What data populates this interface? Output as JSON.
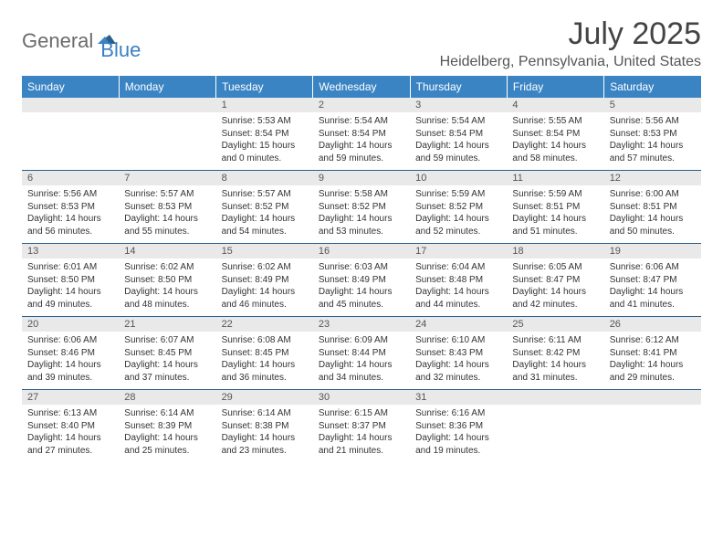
{
  "brand": {
    "part1": "General",
    "part2": "Blue"
  },
  "title": "July 2025",
  "location": "Heidelberg, Pennsylvania, United States",
  "colors": {
    "header_bg": "#3b84c4",
    "header_text": "#ffffff",
    "daynum_bg": "#e9e9e9",
    "rule": "#2b5f8c",
    "logo_gray": "#6b6b6b",
    "logo_blue": "#3b7fc4"
  },
  "days": [
    "Sunday",
    "Monday",
    "Tuesday",
    "Wednesday",
    "Thursday",
    "Friday",
    "Saturday"
  ],
  "weeks": [
    [
      null,
      null,
      {
        "n": "1",
        "sr": "Sunrise: 5:53 AM",
        "ss": "Sunset: 8:54 PM",
        "d1": "Daylight: 15 hours",
        "d2": "and 0 minutes."
      },
      {
        "n": "2",
        "sr": "Sunrise: 5:54 AM",
        "ss": "Sunset: 8:54 PM",
        "d1": "Daylight: 14 hours",
        "d2": "and 59 minutes."
      },
      {
        "n": "3",
        "sr": "Sunrise: 5:54 AM",
        "ss": "Sunset: 8:54 PM",
        "d1": "Daylight: 14 hours",
        "d2": "and 59 minutes."
      },
      {
        "n": "4",
        "sr": "Sunrise: 5:55 AM",
        "ss": "Sunset: 8:54 PM",
        "d1": "Daylight: 14 hours",
        "d2": "and 58 minutes."
      },
      {
        "n": "5",
        "sr": "Sunrise: 5:56 AM",
        "ss": "Sunset: 8:53 PM",
        "d1": "Daylight: 14 hours",
        "d2": "and 57 minutes."
      }
    ],
    [
      {
        "n": "6",
        "sr": "Sunrise: 5:56 AM",
        "ss": "Sunset: 8:53 PM",
        "d1": "Daylight: 14 hours",
        "d2": "and 56 minutes."
      },
      {
        "n": "7",
        "sr": "Sunrise: 5:57 AM",
        "ss": "Sunset: 8:53 PM",
        "d1": "Daylight: 14 hours",
        "d2": "and 55 minutes."
      },
      {
        "n": "8",
        "sr": "Sunrise: 5:57 AM",
        "ss": "Sunset: 8:52 PM",
        "d1": "Daylight: 14 hours",
        "d2": "and 54 minutes."
      },
      {
        "n": "9",
        "sr": "Sunrise: 5:58 AM",
        "ss": "Sunset: 8:52 PM",
        "d1": "Daylight: 14 hours",
        "d2": "and 53 minutes."
      },
      {
        "n": "10",
        "sr": "Sunrise: 5:59 AM",
        "ss": "Sunset: 8:52 PM",
        "d1": "Daylight: 14 hours",
        "d2": "and 52 minutes."
      },
      {
        "n": "11",
        "sr": "Sunrise: 5:59 AM",
        "ss": "Sunset: 8:51 PM",
        "d1": "Daylight: 14 hours",
        "d2": "and 51 minutes."
      },
      {
        "n": "12",
        "sr": "Sunrise: 6:00 AM",
        "ss": "Sunset: 8:51 PM",
        "d1": "Daylight: 14 hours",
        "d2": "and 50 minutes."
      }
    ],
    [
      {
        "n": "13",
        "sr": "Sunrise: 6:01 AM",
        "ss": "Sunset: 8:50 PM",
        "d1": "Daylight: 14 hours",
        "d2": "and 49 minutes."
      },
      {
        "n": "14",
        "sr": "Sunrise: 6:02 AM",
        "ss": "Sunset: 8:50 PM",
        "d1": "Daylight: 14 hours",
        "d2": "and 48 minutes."
      },
      {
        "n": "15",
        "sr": "Sunrise: 6:02 AM",
        "ss": "Sunset: 8:49 PM",
        "d1": "Daylight: 14 hours",
        "d2": "and 46 minutes."
      },
      {
        "n": "16",
        "sr": "Sunrise: 6:03 AM",
        "ss": "Sunset: 8:49 PM",
        "d1": "Daylight: 14 hours",
        "d2": "and 45 minutes."
      },
      {
        "n": "17",
        "sr": "Sunrise: 6:04 AM",
        "ss": "Sunset: 8:48 PM",
        "d1": "Daylight: 14 hours",
        "d2": "and 44 minutes."
      },
      {
        "n": "18",
        "sr": "Sunrise: 6:05 AM",
        "ss": "Sunset: 8:47 PM",
        "d1": "Daylight: 14 hours",
        "d2": "and 42 minutes."
      },
      {
        "n": "19",
        "sr": "Sunrise: 6:06 AM",
        "ss": "Sunset: 8:47 PM",
        "d1": "Daylight: 14 hours",
        "d2": "and 41 minutes."
      }
    ],
    [
      {
        "n": "20",
        "sr": "Sunrise: 6:06 AM",
        "ss": "Sunset: 8:46 PM",
        "d1": "Daylight: 14 hours",
        "d2": "and 39 minutes."
      },
      {
        "n": "21",
        "sr": "Sunrise: 6:07 AM",
        "ss": "Sunset: 8:45 PM",
        "d1": "Daylight: 14 hours",
        "d2": "and 37 minutes."
      },
      {
        "n": "22",
        "sr": "Sunrise: 6:08 AM",
        "ss": "Sunset: 8:45 PM",
        "d1": "Daylight: 14 hours",
        "d2": "and 36 minutes."
      },
      {
        "n": "23",
        "sr": "Sunrise: 6:09 AM",
        "ss": "Sunset: 8:44 PM",
        "d1": "Daylight: 14 hours",
        "d2": "and 34 minutes."
      },
      {
        "n": "24",
        "sr": "Sunrise: 6:10 AM",
        "ss": "Sunset: 8:43 PM",
        "d1": "Daylight: 14 hours",
        "d2": "and 32 minutes."
      },
      {
        "n": "25",
        "sr": "Sunrise: 6:11 AM",
        "ss": "Sunset: 8:42 PM",
        "d1": "Daylight: 14 hours",
        "d2": "and 31 minutes."
      },
      {
        "n": "26",
        "sr": "Sunrise: 6:12 AM",
        "ss": "Sunset: 8:41 PM",
        "d1": "Daylight: 14 hours",
        "d2": "and 29 minutes."
      }
    ],
    [
      {
        "n": "27",
        "sr": "Sunrise: 6:13 AM",
        "ss": "Sunset: 8:40 PM",
        "d1": "Daylight: 14 hours",
        "d2": "and 27 minutes."
      },
      {
        "n": "28",
        "sr": "Sunrise: 6:14 AM",
        "ss": "Sunset: 8:39 PM",
        "d1": "Daylight: 14 hours",
        "d2": "and 25 minutes."
      },
      {
        "n": "29",
        "sr": "Sunrise: 6:14 AM",
        "ss": "Sunset: 8:38 PM",
        "d1": "Daylight: 14 hours",
        "d2": "and 23 minutes."
      },
      {
        "n": "30",
        "sr": "Sunrise: 6:15 AM",
        "ss": "Sunset: 8:37 PM",
        "d1": "Daylight: 14 hours",
        "d2": "and 21 minutes."
      },
      {
        "n": "31",
        "sr": "Sunrise: 6:16 AM",
        "ss": "Sunset: 8:36 PM",
        "d1": "Daylight: 14 hours",
        "d2": "and 19 minutes."
      },
      null,
      null
    ]
  ]
}
